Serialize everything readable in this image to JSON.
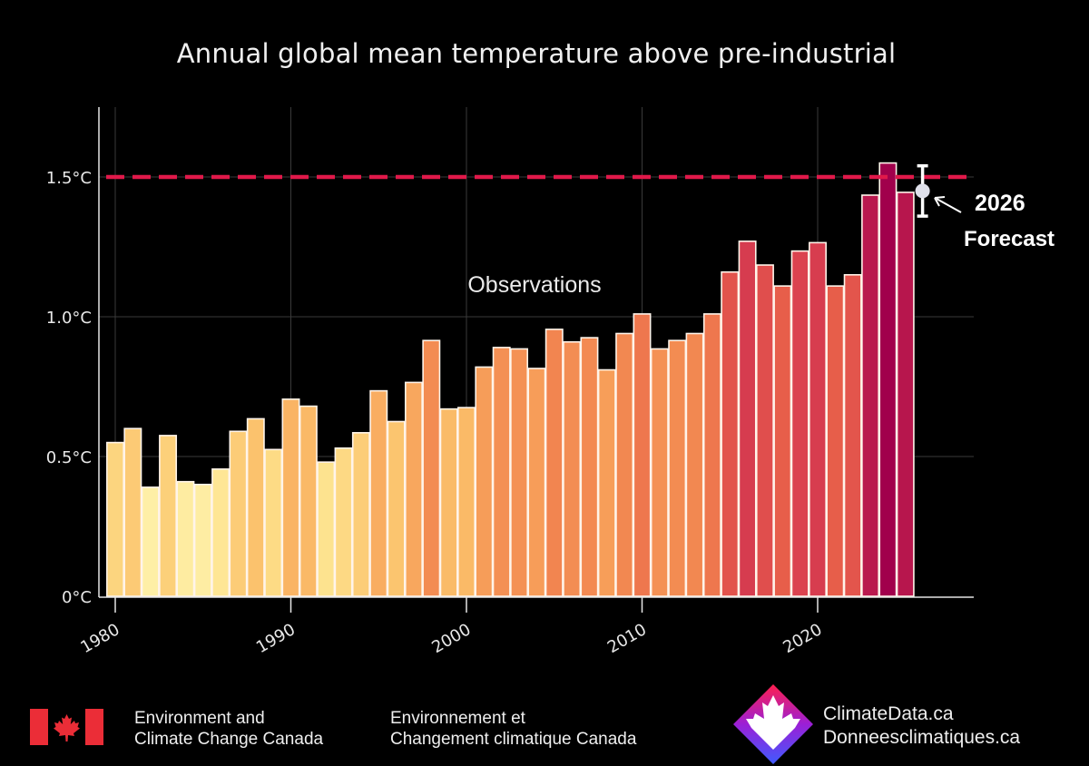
{
  "chart_data": {
    "type": "bar",
    "title": "Annual global mean temperature above pre-industrial",
    "xlabel": "",
    "ylabel": "",
    "ylim": [
      0,
      1.75
    ],
    "xlim": [
      1979.4,
      2029.3
    ],
    "grid": true,
    "yticks": [
      {
        "value": 0,
        "label": "0°C"
      },
      {
        "value": 0.5,
        "label": "0.5°C"
      },
      {
        "value": 1.0,
        "label": "1.0°C"
      },
      {
        "value": 1.5,
        "label": "1.5°C"
      }
    ],
    "xticks": [
      {
        "value": 1980,
        "label": "1980"
      },
      {
        "value": 1990,
        "label": "1990"
      },
      {
        "value": 2000,
        "label": "2000"
      },
      {
        "value": 2010,
        "label": "2010"
      },
      {
        "value": 2020,
        "label": "2020"
      }
    ],
    "categories": [
      1980,
      1981,
      1982,
      1983,
      1984,
      1985,
      1986,
      1987,
      1988,
      1989,
      1990,
      1991,
      1992,
      1993,
      1994,
      1995,
      1996,
      1997,
      1998,
      1999,
      2000,
      2001,
      2002,
      2003,
      2004,
      2005,
      2006,
      2007,
      2008,
      2009,
      2010,
      2011,
      2012,
      2013,
      2014,
      2015,
      2016,
      2017,
      2018,
      2019,
      2020,
      2021,
      2022,
      2023,
      2024,
      2025
    ],
    "series": [
      {
        "name": "Observations",
        "values": [
          0.55,
          0.6,
          0.39,
          0.575,
          0.41,
          0.4,
          0.455,
          0.59,
          0.635,
          0.525,
          0.705,
          0.68,
          0.48,
          0.53,
          0.585,
          0.735,
          0.625,
          0.765,
          0.915,
          0.67,
          0.675,
          0.82,
          0.89,
          0.885,
          0.815,
          0.955,
          0.91,
          0.925,
          0.81,
          0.94,
          1.01,
          0.885,
          0.915,
          0.94,
          1.01,
          1.16,
          1.27,
          1.185,
          1.11,
          1.235,
          1.265,
          1.11,
          1.15,
          1.435,
          1.55,
          1.445
        ]
      }
    ],
    "forecast": {
      "year": 2026,
      "value": 1.45,
      "lower": 1.36,
      "upper": 1.54,
      "label_line1": "2026",
      "label_line2": "Forecast"
    },
    "threshold": {
      "value": 1.5,
      "color": "#e0194a",
      "style": "dashed"
    },
    "annotations": [
      {
        "text": "Observations",
        "x": 2004,
        "y": 1.12
      }
    ],
    "colormap": [
      "#fff4b0",
      "#fde08a",
      "#fbbf6a",
      "#f7a05a",
      "#f28650",
      "#e8604a",
      "#d9404f",
      "#c0204e",
      "#a1004c"
    ]
  },
  "footer": {
    "ecc_en_line1": "Environment and",
    "ecc_en_line2": "Climate Change Canada",
    "ecc_fr_line1": "Environnement et",
    "ecc_fr_line2": "Changement climatique Canada",
    "climatedata_line1": "ClimateData.ca",
    "climatedata_line2": "Donneesclimatiques.ca",
    "flag_icon": "canada-flag-icon",
    "logo_icon": "climatedata-logo-icon"
  }
}
